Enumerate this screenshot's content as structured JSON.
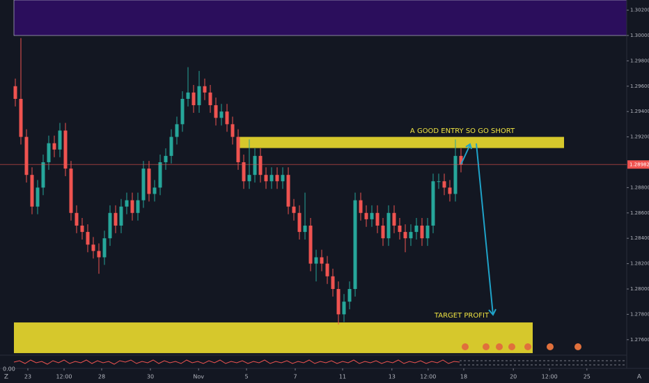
{
  "chart_data": {
    "type": "candlestick",
    "ylim": [
      1.27478,
      1.3028
    ],
    "xlim": [
      -0.25,
      109.75
    ],
    "yticks": [
      {
        "value": 1.302,
        "label": "1.30200"
      },
      {
        "value": 1.3,
        "label": "1.30000"
      },
      {
        "value": 1.298,
        "label": "1.29800"
      },
      {
        "value": 1.296,
        "label": "1.29600"
      },
      {
        "value": 1.294,
        "label": "1.29400"
      },
      {
        "value": 1.292,
        "label": "1.29200"
      },
      {
        "value": 1.288,
        "label": "1.28800"
      },
      {
        "value": 1.286,
        "label": "1.28600"
      },
      {
        "value": 1.284,
        "label": "1.28400"
      },
      {
        "value": 1.282,
        "label": "1.28200"
      },
      {
        "value": 1.28,
        "label": "1.28000"
      },
      {
        "value": 1.278,
        "label": "1.27800"
      },
      {
        "value": 1.276,
        "label": "1.27600"
      }
    ],
    "xticks": [
      {
        "value": 2.25,
        "label": "23"
      },
      {
        "value": 8.75,
        "label": "12:00"
      },
      {
        "value": 15.5,
        "label": "28"
      },
      {
        "value": 24.25,
        "label": "30"
      },
      {
        "value": 32.9,
        "label": "Nov"
      },
      {
        "value": 41.5,
        "label": "5"
      },
      {
        "value": 50.25,
        "label": "7"
      },
      {
        "value": 58.75,
        "label": "11"
      },
      {
        "value": 67.6,
        "label": "13"
      },
      {
        "value": 74.1,
        "label": "12:00"
      },
      {
        "value": 80.5,
        "label": "18"
      },
      {
        "value": 89.4,
        "label": "20"
      },
      {
        "value": 95.9,
        "label": "12:00"
      },
      {
        "value": 102.6,
        "label": "25"
      }
    ],
    "last_price": {
      "value": 1.28982,
      "label": "1.28982"
    },
    "up_color": "#26a69a",
    "down_color": "#ef5350",
    "open": [
      1.296,
      1.295,
      1.292,
      1.289,
      1.2865,
      1.288,
      1.29,
      1.2915,
      1.291,
      1.2925,
      1.2895,
      1.286,
      1.285,
      1.2845,
      1.2835,
      1.283,
      1.2825,
      1.284,
      1.286,
      1.285,
      1.2865,
      1.287,
      1.286,
      1.287,
      1.2895,
      1.2875,
      1.288,
      1.29,
      1.2905,
      1.292,
      1.293,
      1.295,
      1.2955,
      1.2945,
      1.296,
      1.2955,
      1.2945,
      1.2935,
      1.294,
      1.293,
      1.292,
      1.29,
      1.2885,
      1.289,
      1.2905,
      1.289,
      1.2885,
      1.289,
      1.2885,
      1.289,
      1.2865,
      1.286,
      1.2845,
      1.285,
      1.282,
      1.2825,
      1.282,
      1.281,
      1.28,
      1.278,
      1.279,
      1.28,
      1.287,
      1.286,
      1.2855,
      1.286,
      1.285,
      1.284,
      1.286,
      1.285,
      1.2845,
      1.284,
      1.2845,
      1.285,
      1.284,
      1.285,
      1.2885,
      1.2885,
      1.288,
      1.2875,
      1.2905
    ],
    "high": [
      1.2966,
      1.2998,
      1.2926,
      1.2896,
      1.2886,
      1.2906,
      1.2921,
      1.2921,
      1.2931,
      1.2931,
      1.2901,
      1.2866,
      1.2856,
      1.2851,
      1.2841,
      1.2836,
      1.2846,
      1.2866,
      1.2866,
      1.2871,
      1.2876,
      1.2876,
      1.2876,
      1.2901,
      1.2901,
      1.2886,
      1.2906,
      1.2911,
      1.2926,
      1.2936,
      1.2956,
      1.2975,
      1.2961,
      1.2972,
      1.2966,
      1.2961,
      1.2951,
      1.2946,
      1.2946,
      1.2936,
      1.2926,
      1.2906,
      1.2918,
      1.2911,
      1.2911,
      1.2896,
      1.2896,
      1.2896,
      1.2896,
      1.2896,
      1.2871,
      1.2866,
      1.2876,
      1.2856,
      1.2831,
      1.2831,
      1.2826,
      1.2816,
      1.2806,
      1.2796,
      1.2806,
      1.2876,
      1.2876,
      1.2866,
      1.2866,
      1.2866,
      1.2856,
      1.2866,
      1.2866,
      1.2856,
      1.2851,
      1.2851,
      1.2856,
      1.2856,
      1.2856,
      1.2891,
      1.2891,
      1.2891,
      1.2886,
      1.2918,
      1.2911
    ],
    "low": [
      1.2944,
      1.2914,
      1.2884,
      1.2859,
      1.2859,
      1.2874,
      1.2894,
      1.2904,
      1.2904,
      1.2889,
      1.2854,
      1.2844,
      1.2839,
      1.2829,
      1.2824,
      1.2812,
      1.2819,
      1.2834,
      1.2844,
      1.2844,
      1.2859,
      1.2854,
      1.2854,
      1.2864,
      1.2869,
      1.2869,
      1.2874,
      1.2894,
      1.2899,
      1.2914,
      1.2924,
      1.2944,
      1.2939,
      1.2939,
      1.2949,
      1.2939,
      1.2929,
      1.2929,
      1.2924,
      1.2914,
      1.2894,
      1.2879,
      1.2879,
      1.2884,
      1.2884,
      1.2879,
      1.2879,
      1.2879,
      1.2879,
      1.2859,
      1.2854,
      1.2839,
      1.2839,
      1.2814,
      1.2806,
      1.2814,
      1.2804,
      1.2794,
      1.2772,
      1.2774,
      1.2784,
      1.2794,
      1.2854,
      1.2849,
      1.2849,
      1.2844,
      1.2834,
      1.2834,
      1.2844,
      1.2839,
      1.2829,
      1.2834,
      1.2839,
      1.2834,
      1.2834,
      1.2844,
      1.2879,
      1.2874,
      1.2869,
      1.2869,
      1.2892
    ],
    "close": [
      1.295,
      1.292,
      1.289,
      1.2865,
      1.288,
      1.29,
      1.2915,
      1.291,
      1.2925,
      1.2895,
      1.286,
      1.285,
      1.2845,
      1.2835,
      1.283,
      1.2825,
      1.284,
      1.286,
      1.285,
      1.2865,
      1.287,
      1.286,
      1.287,
      1.2895,
      1.2875,
      1.288,
      1.29,
      1.2905,
      1.292,
      1.293,
      1.295,
      1.2955,
      1.2945,
      1.296,
      1.2955,
      1.2945,
      1.2935,
      1.294,
      1.293,
      1.292,
      1.29,
      1.2885,
      1.289,
      1.2905,
      1.289,
      1.2885,
      1.289,
      1.2885,
      1.289,
      1.2865,
      1.286,
      1.2845,
      1.285,
      1.282,
      1.2825,
      1.282,
      1.281,
      1.28,
      1.278,
      1.279,
      1.28,
      1.287,
      1.286,
      1.2855,
      1.286,
      1.285,
      1.284,
      1.286,
      1.285,
      1.2845,
      1.284,
      1.2845,
      1.285,
      1.284,
      1.285,
      1.2885,
      1.2885,
      1.288,
      1.2875,
      1.2905,
      1.2898
    ],
    "zones": [
      {
        "ylim": [
          1.3,
          1.3028
        ],
        "xlim": [
          -0.25,
          109.75
        ],
        "color": "#2b0e5c"
      },
      {
        "ylim": [
          1.29112,
          1.292
        ],
        "xlim": [
          39.875,
          98.5
        ],
        "color": "#d6c82c"
      },
      {
        "ylim": [
          1.27494,
          1.27736
        ],
        "xlim": [
          -0.25,
          92.875
        ],
        "color": "#d6c82c"
      }
    ],
    "annotations": [
      "A GOOD ENTRY SO GO SHORT",
      "TARGET PROFIT"
    ],
    "oscillator_label": "0.00"
  },
  "ui": {
    "left_icon": "Z",
    "right_icon": "A"
  }
}
